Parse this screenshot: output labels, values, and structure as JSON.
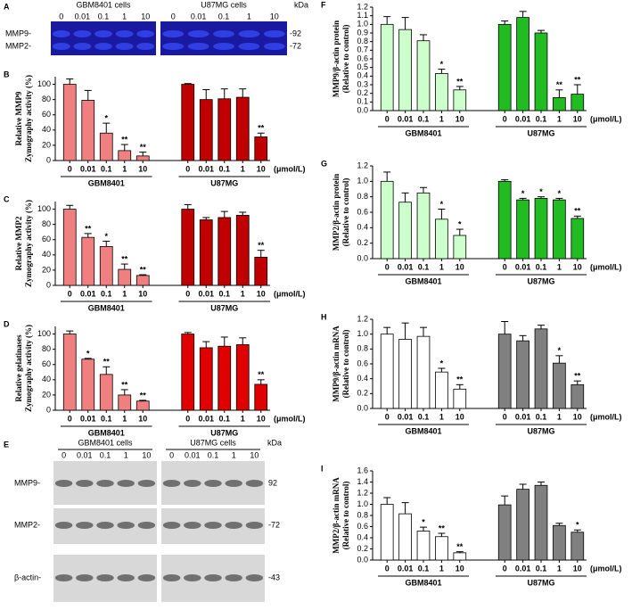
{
  "chart_data": [
    {
      "type": "bar",
      "panel": "B",
      "ylabel": [
        "Relative MMP9",
        "Zymography activity (%)"
      ],
      "ylim": [
        0,
        110
      ],
      "yticks": [
        0,
        20,
        40,
        60,
        80,
        100
      ],
      "unit": "(μmol/L)",
      "categories": [
        "0",
        "0.01",
        "0.1",
        "1",
        "10"
      ],
      "series": [
        {
          "name": "GBM8401",
          "color": "#f08080",
          "values": [
            100,
            79,
            36,
            13,
            6
          ],
          "errors": [
            7,
            13,
            13,
            8,
            5
          ],
          "annotations": [
            null,
            null,
            "*",
            "**",
            "**"
          ]
        },
        {
          "name": "U87MG",
          "color": "#c00000",
          "values": [
            100,
            80,
            81,
            83,
            31
          ],
          "errors": [
            1,
            13,
            13,
            11,
            5
          ],
          "annotations": [
            null,
            null,
            null,
            null,
            "**"
          ]
        }
      ]
    },
    {
      "type": "bar",
      "panel": "C",
      "ylabel": [
        "Relative MMP2",
        "Zymography activity (%)"
      ],
      "ylim": [
        0,
        110
      ],
      "yticks": [
        0,
        20,
        40,
        60,
        80,
        100
      ],
      "unit": "(μmol/L)",
      "categories": [
        "0",
        "0.01",
        "0.1",
        "1",
        "10"
      ],
      "series": [
        {
          "name": "GBM8401",
          "color": "#f08080",
          "values": [
            100,
            63,
            51,
            21,
            13
          ],
          "errors": [
            5,
            5,
            7,
            7,
            1
          ],
          "annotations": [
            null,
            "**",
            "*",
            "**",
            "**"
          ]
        },
        {
          "name": "U87MG",
          "color": "#c00000",
          "values": [
            100,
            86,
            89,
            92,
            37
          ],
          "errors": [
            6,
            3,
            8,
            4,
            9
          ],
          "annotations": [
            null,
            null,
            null,
            null,
            "**"
          ]
        }
      ]
    },
    {
      "type": "bar",
      "panel": "D",
      "ylabel": [
        "Relative gelatinases",
        "Zymography activity (%)"
      ],
      "ylim": [
        0,
        110
      ],
      "yticks": [
        0,
        20,
        40,
        60,
        80,
        100
      ],
      "unit": "(μmol/L)",
      "categories": [
        "0",
        "0.01",
        "0.1",
        "1",
        "10"
      ],
      "series": [
        {
          "name": "GBM8401",
          "color": "#f08080",
          "values": [
            100,
            67,
            47,
            20,
            12
          ],
          "errors": [
            4,
            1,
            10,
            7,
            1
          ],
          "annotations": [
            null,
            "*",
            "**",
            "**",
            "**"
          ]
        },
        {
          "name": "U87MG",
          "color": "#e00000",
          "values": [
            100,
            82,
            84,
            86,
            34
          ],
          "errors": [
            2,
            8,
            12,
            9,
            6
          ],
          "annotations": [
            null,
            null,
            null,
            null,
            "**"
          ]
        }
      ]
    },
    {
      "type": "bar",
      "panel": "F",
      "ylabel": [
        "MMP9/β-actin protein",
        "(Relative to control)"
      ],
      "ylim": [
        0,
        1.2
      ],
      "yticks": [
        {
          "value": 0,
          "label": "0.0"
        },
        0.1,
        0.2,
        0.3,
        0.4,
        0.5,
        0.6,
        0.7,
        0.8,
        0.9,
        {
          "value": 1,
          "label": "1.0"
        },
        1.1,
        1.2
      ],
      "unit": "(μmol/L)",
      "categories": [
        "0",
        "0.01",
        "0.1",
        "1",
        "10"
      ],
      "series": [
        {
          "name": "GBM8401",
          "color": "#ccffcc",
          "values": [
            1.0,
            0.94,
            0.81,
            0.43,
            0.24
          ],
          "errors": [
            0.09,
            0.14,
            0.07,
            0.05,
            0.04
          ],
          "annotations": [
            null,
            null,
            null,
            "*",
            "**"
          ]
        },
        {
          "name": "U87MG",
          "color": "#22bb22",
          "values": [
            1.0,
            1.08,
            0.9,
            0.15,
            0.19
          ],
          "errors": [
            0.04,
            0.07,
            0.03,
            0.09,
            0.11
          ],
          "annotations": [
            null,
            null,
            null,
            "**",
            "**"
          ]
        }
      ]
    },
    {
      "type": "bar",
      "panel": "G",
      "ylabel": [
        "MMP2/β-actin protein",
        "(Relative to control)"
      ],
      "ylim": [
        0,
        1.2
      ],
      "yticks": [
        {
          "value": 0,
          "label": "0.0"
        },
        0.2,
        0.4,
        0.6,
        0.8,
        {
          "value": 1,
          "label": "1.0"
        },
        1.2
      ],
      "unit": "(μmol/L)",
      "categories": [
        "0",
        "0.01",
        "0.1",
        "1",
        "10"
      ],
      "series": [
        {
          "name": "GBM8401",
          "color": "#ccffcc",
          "values": [
            1.0,
            0.73,
            0.85,
            0.51,
            0.3
          ],
          "errors": [
            0.12,
            0.12,
            0.07,
            0.13,
            0.08
          ],
          "annotations": [
            null,
            null,
            null,
            "*",
            "*"
          ]
        },
        {
          "name": "U87MG",
          "color": "#22bb22",
          "values": [
            1.0,
            0.76,
            0.78,
            0.76,
            0.52
          ],
          "errors": [
            0.02,
            0.02,
            0.02,
            0.02,
            0.03
          ],
          "annotations": [
            null,
            "*",
            "*",
            "*",
            "**"
          ]
        }
      ]
    },
    {
      "type": "bar",
      "panel": "H",
      "ylabel": [
        "MMP9/β-actin mRNA",
        "(Relative to control)"
      ],
      "ylim": [
        0,
        1.2
      ],
      "yticks": [
        {
          "value": 0,
          "label": "0.0"
        },
        0.2,
        0.4,
        0.6,
        0.8,
        {
          "value": 1,
          "label": "1.0"
        },
        1.2
      ],
      "unit": "(μmol/L)",
      "categories": [
        "0",
        "0.01",
        "0.1",
        "1",
        "10"
      ],
      "series": [
        {
          "name": "GBM8401",
          "color": "#ffffff",
          "values": [
            1.0,
            0.93,
            0.97,
            0.49,
            0.26
          ],
          "errors": [
            0.09,
            0.22,
            0.12,
            0.05,
            0.06
          ],
          "annotations": [
            null,
            null,
            null,
            "*",
            "**"
          ]
        },
        {
          "name": "U87MG",
          "color": "#808080",
          "values": [
            1.0,
            0.91,
            1.07,
            0.61,
            0.32
          ],
          "errors": [
            0.17,
            0.07,
            0.05,
            0.1,
            0.05
          ],
          "annotations": [
            null,
            null,
            null,
            "*",
            "**"
          ]
        }
      ]
    },
    {
      "type": "bar",
      "panel": "I",
      "ylabel": [
        "MMP2/β-actin mRNA",
        "(Relative to control)"
      ],
      "ylim": [
        0,
        1.6
      ],
      "yticks": [
        {
          "value": 0,
          "label": "0.0"
        },
        0.2,
        0.4,
        0.6,
        0.8,
        {
          "value": 1,
          "label": "1.0"
        },
        1.2,
        1.4,
        1.6
      ],
      "unit": "(μmol/L)",
      "categories": [
        "0",
        "0.01",
        "0.1",
        "1",
        "10"
      ],
      "series": [
        {
          "name": "GBM8401",
          "color": "#ffffff",
          "values": [
            1.0,
            0.83,
            0.52,
            0.42,
            0.13
          ],
          "errors": [
            0.12,
            0.2,
            0.07,
            0.06,
            0.02
          ],
          "annotations": [
            null,
            null,
            "*",
            "**",
            "**"
          ]
        },
        {
          "name": "U87MG",
          "color": "#808080",
          "values": [
            0.99,
            1.27,
            1.34,
            0.62,
            0.5
          ],
          "errors": [
            0.16,
            0.09,
            0.06,
            0.04,
            0.04
          ],
          "annotations": [
            null,
            null,
            null,
            null,
            "*"
          ]
        }
      ]
    }
  ],
  "blots": [
    {
      "panel": "A",
      "groups": [
        "GBM8401 cells",
        "U87MG cells"
      ],
      "lanes": [
        "0",
        "0.01",
        "0.1",
        "1",
        "10"
      ],
      "unit": "kDa",
      "rows": [
        {
          "name": "MMP9-",
          "marker": "-92"
        },
        {
          "name": "MMP2-",
          "marker": "-72"
        }
      ]
    },
    {
      "panel": "E",
      "groups": [
        "GBM8401 cells",
        "U87MG cells"
      ],
      "lanes": [
        "0",
        "0.01",
        "0.1",
        "1",
        "10"
      ],
      "unit": "kDa",
      "rows": [
        {
          "name": "MMP9-",
          "marker": "92"
        },
        {
          "name": "MMP2-",
          "marker": "-72"
        },
        {
          "name": "β-actin-",
          "marker": "-43"
        }
      ]
    }
  ]
}
